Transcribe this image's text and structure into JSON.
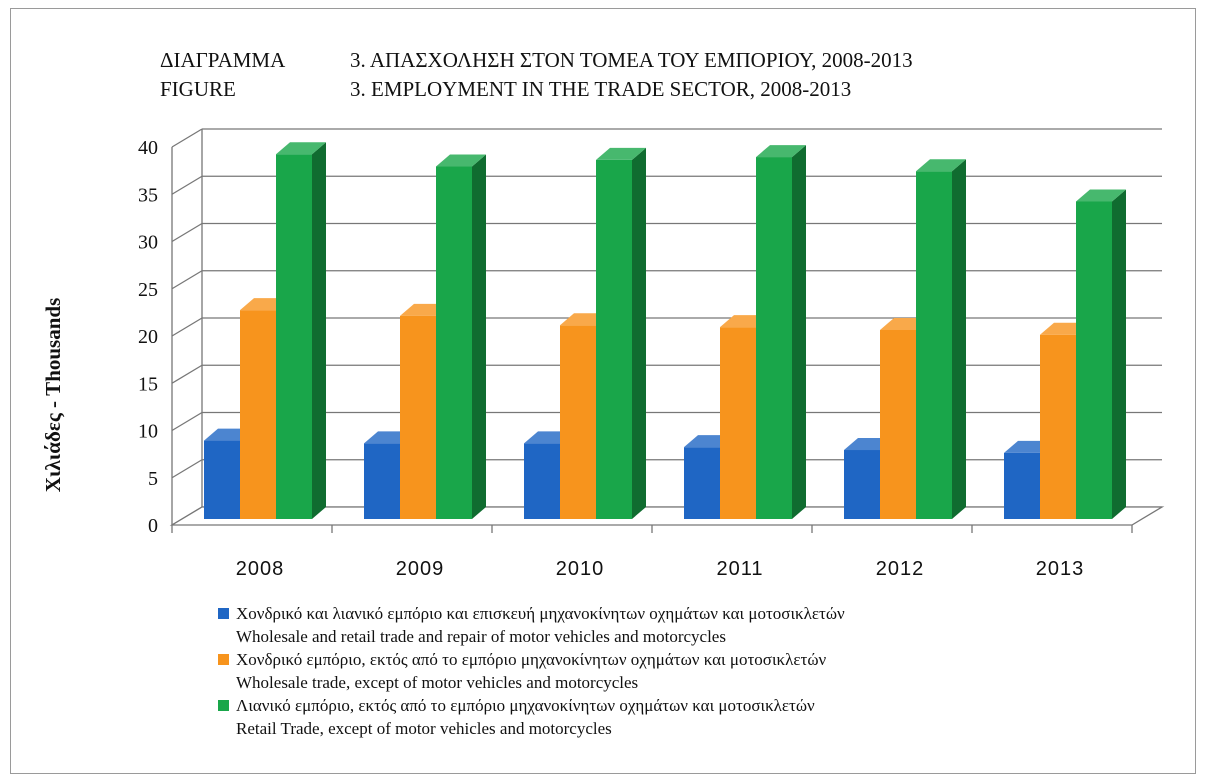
{
  "title": {
    "gr_label": "ΔΙΑΓΡΑΜΜΑ",
    "gr_text": "3.  ΑΠΑΣΧΟΛΗΣΗ ΣΤΟΝ ΤΟΜΕΑ ΤΟΥ ΕΜΠΟΡΙΟΥ, 2008-2013",
    "en_label": "FIGURE",
    "en_text": "3.  EMPLOYMENT IN THE TRADE SECTOR, 2008-2013"
  },
  "colors": {
    "series1": "#1f66c4",
    "series2": "#f7941d",
    "series3": "#19a64a"
  },
  "legend": [
    {
      "line1": "Χονδρικό και λιανικό εμπόριο και επισκευή μηχανοκίνητων  οχημάτων και μοτοσικλετών",
      "line2": "Wholesale and retail trade and repair of motor vehicles and motorcycles"
    },
    {
      "line1": "Χονδρικό εμπόριο, εκτός από το εμπόριο μηχανοκίνητων  οχημάτων και μοτοσικλετών",
      "line2": "Wholesale trade, except of motor vehicles and motorcycles"
    },
    {
      "line1": "Λιανικό εμπόριο, εκτός από το εμπόριο μηχανοκίνητων  οχημάτων και μοτοσικλετών",
      "line2": "Retail Trade, except of motor vehicles and motorcycles"
    }
  ],
  "chart_data": {
    "type": "bar",
    "ylabel": "Χιλιάδες - Thousands",
    "ylim": [
      0,
      40
    ],
    "yticks": [
      0,
      5,
      10,
      15,
      20,
      25,
      30,
      35,
      40
    ],
    "grid": true,
    "legend_position": "bottom",
    "categories": [
      "2008",
      "2009",
      "2010",
      "2011",
      "2012",
      "2013"
    ],
    "series": [
      {
        "name": "Χονδρικό και λιανικό εμπόριο και επισκευή μηχανοκίνητων οχημάτων και μοτοσικλετών / Wholesale and retail trade and repair of motor vehicles and motorcycles",
        "values": [
          8.3,
          8.0,
          8.0,
          7.6,
          7.3,
          7.0
        ]
      },
      {
        "name": "Χονδρικό εμπόριο, εκτός από το εμπόριο μηχανοκίνητων οχημάτων και μοτοσικλετών / Wholesale trade, except of motor vehicles and motorcycles",
        "values": [
          22.1,
          21.5,
          20.5,
          20.3,
          20.0,
          19.5
        ]
      },
      {
        "name": "Λιανικό εμπόριο, εκτός από το εμπόριο μηχανοκίνητων οχημάτων και μοτοσικλετών / Retail Trade, except of motor vehicles and motorcycles",
        "values": [
          38.6,
          37.3,
          38.0,
          38.3,
          36.8,
          33.6
        ]
      }
    ]
  }
}
